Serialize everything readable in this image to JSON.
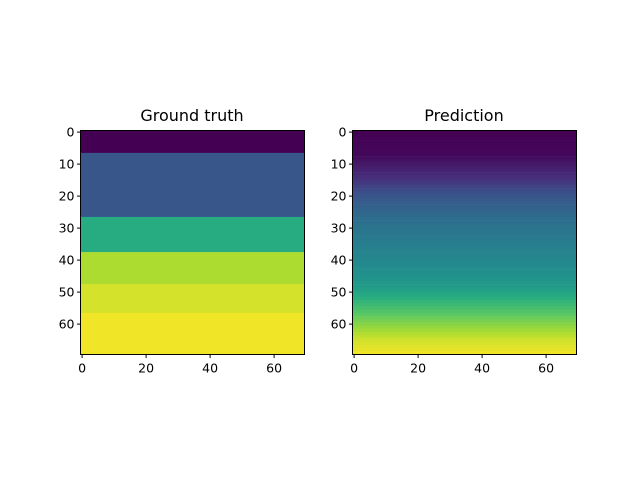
{
  "chart_data": [
    {
      "type": "heatmap",
      "title": "Ground truth",
      "colormap": "viridis",
      "shape": [
        70,
        70
      ],
      "xlim": [
        -0.5,
        69.5
      ],
      "ylim": [
        69.5,
        -0.5
      ],
      "xticks": [
        0,
        20,
        40,
        60
      ],
      "yticks": [
        0,
        10,
        20,
        30,
        40,
        50,
        60
      ],
      "xticklabels": [
        "0",
        "20",
        "40",
        "60"
      ],
      "yticklabels": [
        "0",
        "10",
        "20",
        "30",
        "40",
        "50",
        "60"
      ],
      "value_range": [
        0,
        1
      ],
      "layers": [
        {
          "row_start": 0,
          "row_end": 7,
          "value": 0.0
        },
        {
          "row_start": 7,
          "row_end": 27,
          "value": 0.27
        },
        {
          "row_start": 27,
          "row_end": 38,
          "value": 0.62
        },
        {
          "row_start": 38,
          "row_end": 48,
          "value": 0.88
        },
        {
          "row_start": 48,
          "row_end": 57,
          "value": 0.94
        },
        {
          "row_start": 57,
          "row_end": 70,
          "value": 0.98
        }
      ]
    },
    {
      "type": "heatmap",
      "title": "Prediction",
      "colormap": "viridis",
      "shape": [
        70,
        70
      ],
      "xlim": [
        -0.5,
        69.5
      ],
      "ylim": [
        69.5,
        -0.5
      ],
      "xticks": [
        0,
        20,
        40,
        60
      ],
      "yticks": [
        0,
        10,
        20,
        30,
        40,
        50,
        60
      ],
      "xticklabels": [
        "0",
        "20",
        "40",
        "60"
      ],
      "yticklabels": [
        "0",
        "10",
        "20",
        "30",
        "40",
        "50",
        "60"
      ],
      "value_range": [
        0,
        1
      ],
      "row_profile": [
        {
          "row": 0,
          "value": 0.0
        },
        {
          "row": 7,
          "value": 0.02
        },
        {
          "row": 14,
          "value": 0.13
        },
        {
          "row": 20,
          "value": 0.27
        },
        {
          "row": 27,
          "value": 0.36
        },
        {
          "row": 35,
          "value": 0.43
        },
        {
          "row": 42,
          "value": 0.48
        },
        {
          "row": 48,
          "value": 0.54
        },
        {
          "row": 54,
          "value": 0.68
        },
        {
          "row": 60,
          "value": 0.82
        },
        {
          "row": 65,
          "value": 0.93
        },
        {
          "row": 69,
          "value": 0.98
        }
      ]
    }
  ]
}
